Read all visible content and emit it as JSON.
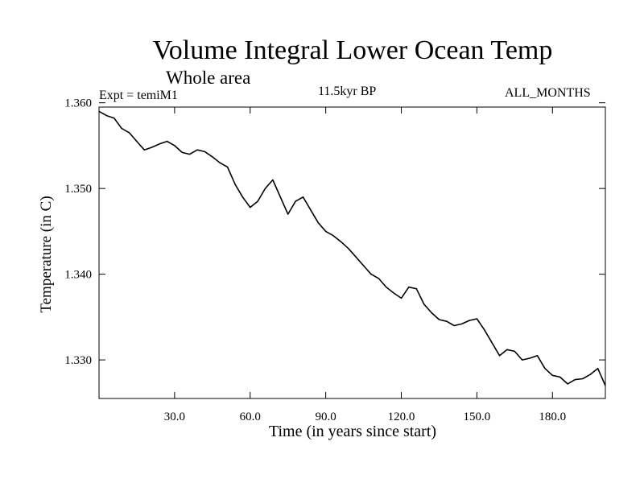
{
  "chart_data": {
    "type": "line",
    "title": "Volume Integral Lower Ocean Temp",
    "subtitle": "Whole area",
    "annotations": {
      "experiment": "Expt = temiM1",
      "period": "11.5kyr BP",
      "months": "ALL_MONTHS"
    },
    "xlabel": "Time (in years since start)",
    "ylabel": "Temperature (in C)",
    "xlim": [
      0,
      201
    ],
    "ylim": [
      1.3255,
      1.3595
    ],
    "x_ticks": [
      30,
      60,
      90,
      120,
      150,
      180
    ],
    "x_tick_labels": [
      "30.0",
      "60.0",
      "90.0",
      "120.0",
      "150.0",
      "180.0"
    ],
    "y_ticks": [
      1.33,
      1.34,
      1.35,
      1.36
    ],
    "y_tick_labels": [
      "1.330",
      "1.340",
      "1.350",
      "1.360"
    ],
    "grid": false,
    "series": [
      {
        "name": "temiM1",
        "x": [
          0,
          3,
          6,
          9,
          12,
          15,
          18,
          21,
          24,
          27,
          30,
          33,
          36,
          39,
          42,
          45,
          48,
          51,
          54,
          57,
          60,
          63,
          66,
          69,
          72,
          75,
          78,
          81,
          84,
          87,
          90,
          93,
          96,
          99,
          102,
          105,
          108,
          111,
          114,
          117,
          120,
          123,
          126,
          129,
          132,
          135,
          138,
          141,
          144,
          147,
          150,
          153,
          156,
          159,
          162,
          165,
          168,
          171,
          174,
          177,
          180,
          183,
          186,
          189,
          192,
          195,
          198,
          201
        ],
        "values": [
          1.359,
          1.3585,
          1.3582,
          1.357,
          1.3565,
          1.3555,
          1.3545,
          1.3548,
          1.3552,
          1.3555,
          1.355,
          1.3542,
          1.354,
          1.3545,
          1.3543,
          1.3537,
          1.353,
          1.3525,
          1.3505,
          1.349,
          1.3478,
          1.3485,
          1.35,
          1.351,
          1.349,
          1.347,
          1.3485,
          1.349,
          1.3475,
          1.346,
          1.345,
          1.3445,
          1.3438,
          1.343,
          1.342,
          1.341,
          1.34,
          1.3395,
          1.3385,
          1.3378,
          1.3372,
          1.3385,
          1.3383,
          1.3365,
          1.3355,
          1.3347,
          1.3345,
          1.334,
          1.3342,
          1.3346,
          1.3348,
          1.3335,
          1.332,
          1.3305,
          1.3312,
          1.331,
          1.33,
          1.3302,
          1.3305,
          1.329,
          1.3282,
          1.328,
          1.3272,
          1.3277,
          1.3278,
          1.3283,
          1.329,
          1.327
        ]
      }
    ]
  }
}
